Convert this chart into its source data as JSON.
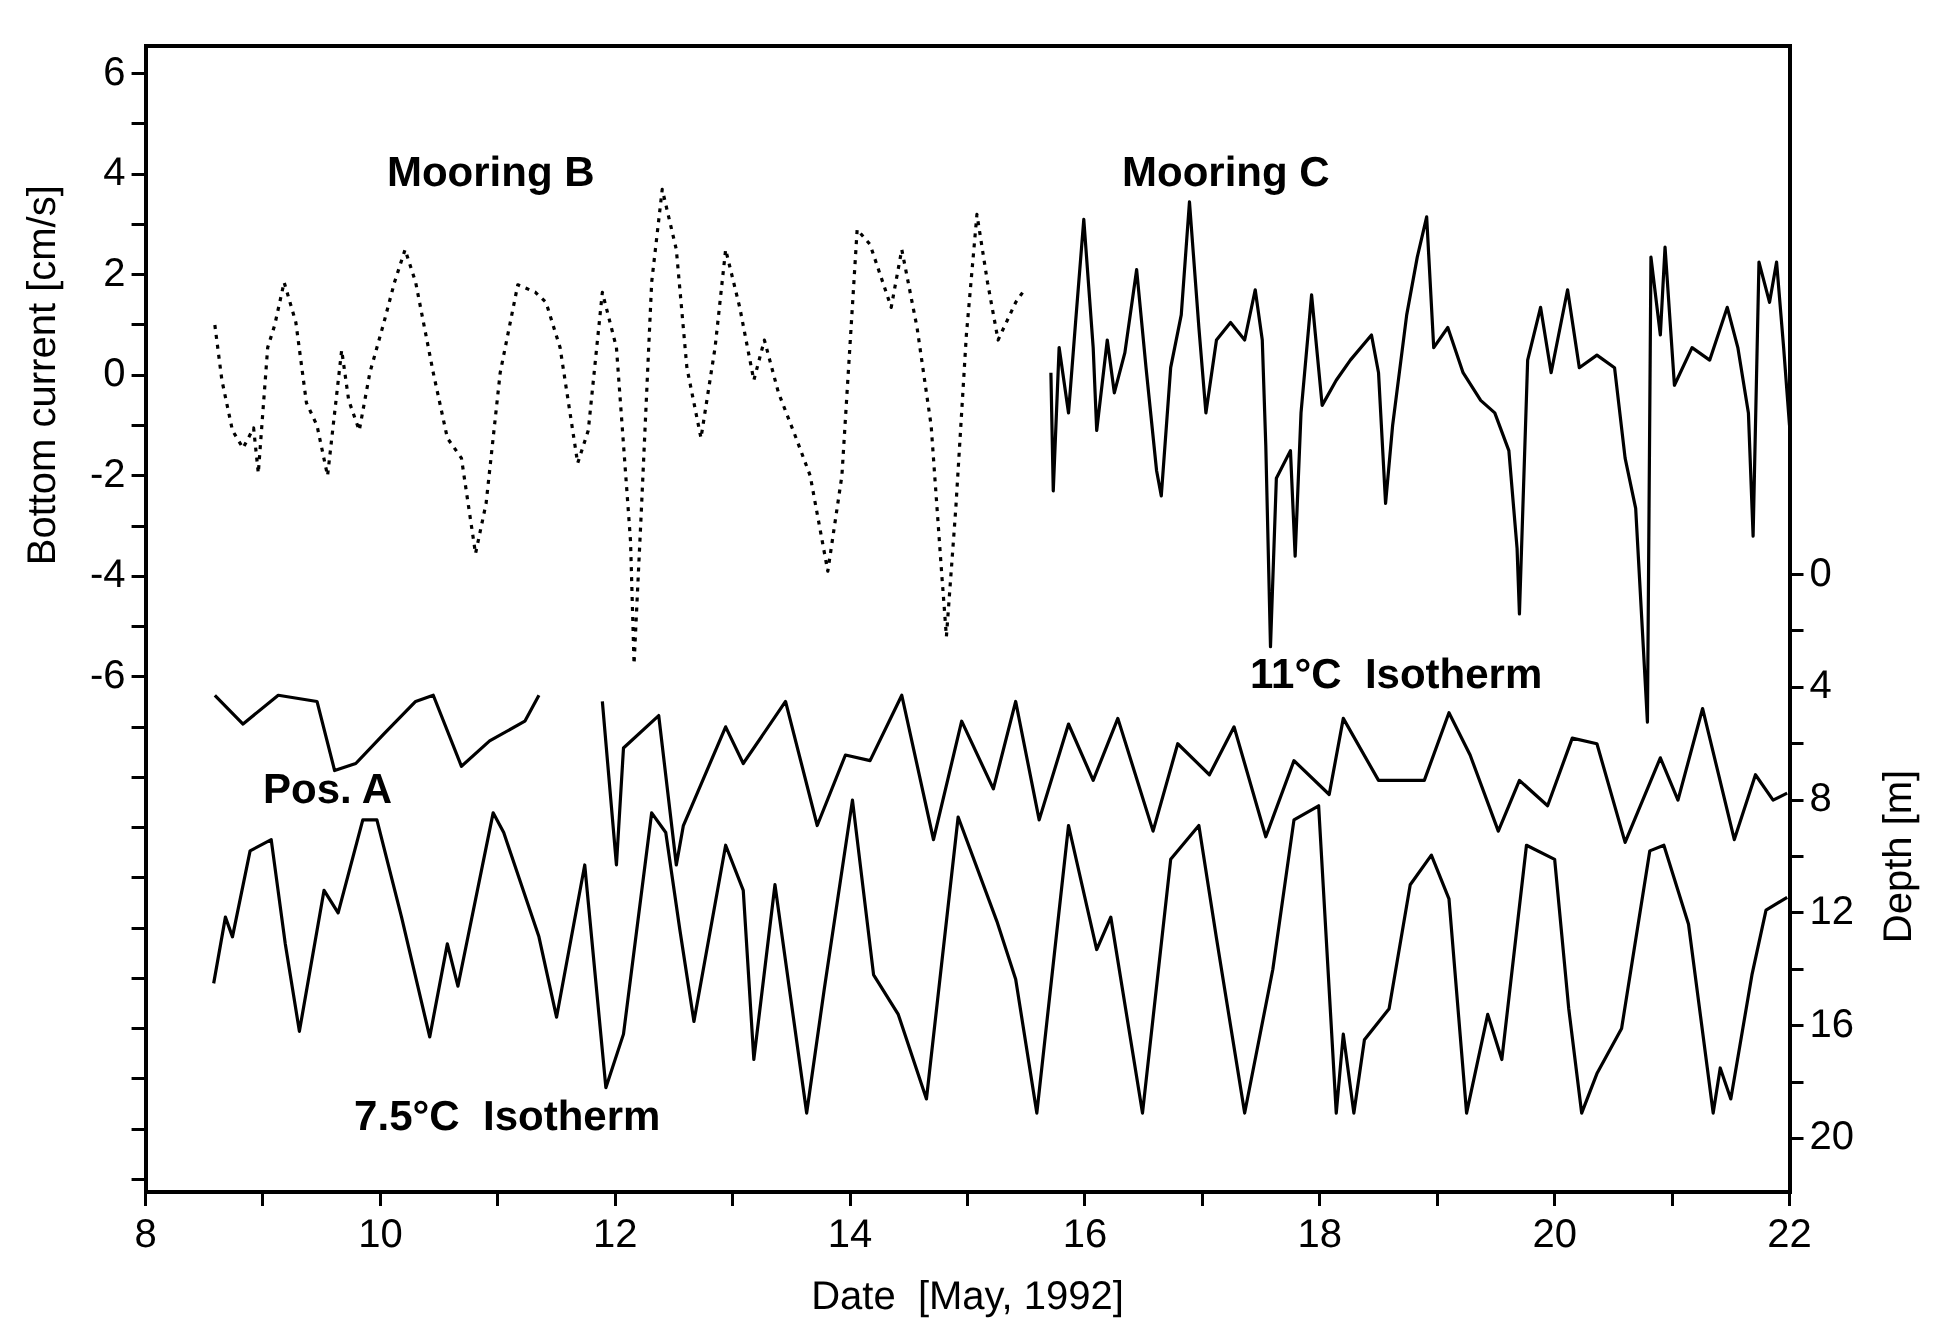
{
  "chart_data": {
    "type": "line",
    "xlabel": "Date  [May, 1992]",
    "ylabel": "Bottom current [cm/s]",
    "y2label": "Depth [m]",
    "annotations": [
      "Pos. A"
    ],
    "xlim": [
      8,
      22
    ],
    "xticks": [
      8,
      {
        "value": 9,
        "label": null
      },
      10,
      {
        "value": 11,
        "label": null
      },
      12,
      {
        "value": 13,
        "label": null
      },
      14,
      {
        "value": 15,
        "label": null
      },
      16,
      {
        "value": 17,
        "label": null
      },
      18,
      {
        "value": 19,
        "label": null
      },
      20,
      {
        "value": 21,
        "label": null
      },
      22
    ],
    "ylim": [
      -16.25,
      6.55
    ],
    "yticks": [
      {
        "value": -16,
        "label": null
      },
      {
        "value": -15,
        "label": null
      },
      {
        "value": -14,
        "label": null
      },
      {
        "value": -13,
        "label": null
      },
      {
        "value": -12,
        "label": null
      },
      {
        "value": -11,
        "label": null
      },
      {
        "value": -10,
        "label": null
      },
      {
        "value": -9,
        "label": null
      },
      {
        "value": -8,
        "label": null
      },
      {
        "value": -7,
        "label": null
      },
      -6,
      {
        "value": -5,
        "label": null
      },
      -4,
      {
        "value": -3,
        "label": null
      },
      -2,
      {
        "value": -1,
        "label": null
      },
      0,
      {
        "value": 1,
        "label": null
      },
      2,
      {
        "value": 3,
        "label": null
      },
      4,
      {
        "value": 5,
        "label": null
      },
      6
    ],
    "y2lim": [
      21.9,
      -18.75
    ],
    "y2ticks": [
      0,
      {
        "value": 2,
        "label": null
      },
      4,
      {
        "value": 6,
        "label": null
      },
      8,
      {
        "value": 10,
        "label": null
      },
      12,
      {
        "value": 14,
        "label": null
      },
      16,
      {
        "value": 18,
        "label": null
      },
      20
    ],
    "series": [
      {
        "name": "Mooring B",
        "color": "#000000",
        "line_style": "dotted",
        "x": [
          8.59,
          8.65,
          8.74,
          8.83,
          8.92,
          8.96,
          9.04,
          9.1,
          9.18,
          9.28,
          9.37,
          9.46,
          9.55,
          9.67,
          9.73,
          9.82,
          9.91,
          10.03,
          10.12,
          10.21,
          10.3,
          10.45,
          10.57,
          10.69,
          10.81,
          10.9,
          11.02,
          11.17,
          11.32,
          11.41,
          11.53,
          11.68,
          11.77,
          11.89,
          12.01,
          12.13,
          12.16,
          12.22,
          12.31,
          12.4,
          12.52,
          12.61,
          12.73,
          12.85,
          12.94,
          13.06,
          13.18,
          13.27,
          13.39,
          13.54,
          13.66,
          13.81,
          13.93,
          14.06,
          14.17,
          14.35,
          14.44,
          14.57,
          14.69,
          14.78,
          14.82,
          14.9,
          14.99,
          15.08,
          15.17,
          15.26,
          15.41,
          15.47
        ],
        "values": [
          1.0,
          -0.1,
          -1.1,
          -1.45,
          -1.05,
          -1.95,
          0.55,
          1.0,
          1.85,
          1.05,
          -0.55,
          -1.0,
          -2.0,
          0.5,
          -0.5,
          -1.1,
          0.05,
          1.05,
          1.85,
          2.5,
          1.85,
          0.05,
          -1.25,
          -1.65,
          -3.55,
          -2.55,
          0.05,
          1.8,
          1.65,
          1.45,
          0.55,
          -1.75,
          -1.1,
          1.65,
          0.55,
          -3.3,
          -5.75,
          -2.8,
          1.85,
          3.7,
          2.5,
          0.15,
          -1.25,
          0.55,
          2.5,
          1.35,
          -0.1,
          0.7,
          -0.35,
          -1.25,
          -2.0,
          -3.9,
          -2.0,
          2.9,
          2.6,
          1.35,
          2.5,
          0.95,
          -1.0,
          -3.95,
          -5.2,
          -2.65,
          0.8,
          3.2,
          1.85,
          0.7,
          1.45,
          1.65
        ]
      },
      {
        "name": "Mooring C",
        "color": "#000000",
        "line_style": "solid",
        "x": [
          15.71,
          15.73,
          15.78,
          15.86,
          15.92,
          15.99,
          16.07,
          16.1,
          16.19,
          16.25,
          16.34,
          16.44,
          16.52,
          16.61,
          16.65,
          16.73,
          16.82,
          16.89,
          16.97,
          17.03,
          17.12,
          17.24,
          17.36,
          17.45,
          17.51,
          17.54,
          17.58,
          17.63,
          17.75,
          17.79,
          17.84,
          17.93,
          18.02,
          18.14,
          18.26,
          18.44,
          18.5,
          18.56,
          18.62,
          18.74,
          18.83,
          18.91,
          18.97,
          19.09,
          19.22,
          19.37,
          19.49,
          19.61,
          19.68,
          19.7,
          19.77,
          19.88,
          19.97,
          20.11,
          20.21,
          20.36,
          20.51,
          20.6,
          20.69,
          20.79,
          20.82,
          20.9,
          20.94,
          21.02,
          21.17,
          21.32,
          21.47,
          21.56,
          21.65,
          21.69,
          21.74,
          21.83,
          21.89,
          21.95,
          22.0
        ],
        "values": [
          0.05,
          -2.3,
          0.55,
          -0.75,
          1.05,
          3.1,
          0.55,
          -1.1,
          0.7,
          -0.35,
          0.45,
          2.1,
          0.15,
          -1.9,
          -2.4,
          0.15,
          1.2,
          3.45,
          0.95,
          -0.75,
          0.7,
          1.05,
          0.7,
          1.7,
          0.7,
          -1.4,
          -5.4,
          -2.05,
          -1.5,
          -3.6,
          -0.75,
          1.6,
          -0.6,
          -0.1,
          0.3,
          0.8,
          0.05,
          -2.55,
          -1.0,
          1.2,
          2.35,
          3.15,
          0.55,
          0.95,
          0.05,
          -0.5,
          -0.75,
          -1.5,
          -3.45,
          -4.75,
          0.3,
          1.35,
          0.05,
          1.7,
          0.15,
          0.4,
          0.15,
          -1.65,
          -2.65,
          -6.9,
          2.35,
          0.8,
          2.55,
          -0.2,
          0.55,
          0.3,
          1.35,
          0.55,
          -0.75,
          -3.2,
          2.25,
          1.45,
          2.25,
          0.55,
          -1.0
        ]
      },
      {
        "name": "11°C  Isotherm",
        "color": "#000000",
        "line_style": "solid",
        "axis": "y2",
        "x": [
          8.59,
          8.83,
          9.13,
          9.46,
          9.61,
          9.79,
          10.03,
          10.3,
          10.45,
          10.69,
          10.93,
          11.23,
          11.35,
          11.6,
          11.89,
          12.01,
          12.07,
          12.37,
          12.52,
          12.58,
          12.94,
          13.09,
          13.45,
          13.72,
          13.96,
          14.17,
          14.44,
          14.71,
          14.95,
          15.22,
          15.41,
          15.61,
          15.86,
          16.07,
          16.28,
          16.58,
          16.79,
          17.06,
          17.27,
          17.54,
          17.78,
          18.08,
          18.2,
          18.5,
          18.89,
          19.1,
          19.28,
          19.52,
          19.7,
          19.94,
          20.15,
          20.36,
          20.6,
          20.9,
          21.05,
          21.26,
          21.53,
          21.71,
          21.86,
          21.98
        ],
        "values": [
          4.28,
          5.3,
          4.28,
          4.5,
          6.95,
          6.7,
          5.65,
          4.5,
          4.28,
          6.8,
          5.9,
          5.2,
          4.28,
          null,
          4.5,
          10.3,
          6.15,
          5.0,
          10.3,
          8.9,
          5.4,
          6.7,
          4.5,
          8.9,
          6.4,
          6.6,
          4.28,
          9.4,
          5.2,
          7.6,
          4.5,
          8.7,
          5.3,
          7.3,
          5.1,
          9.1,
          6.0,
          7.1,
          5.4,
          9.3,
          6.6,
          7.8,
          5.1,
          7.3,
          7.3,
          4.9,
          6.4,
          9.1,
          7.3,
          8.2,
          5.8,
          6.0,
          9.5,
          6.5,
          8.0,
          4.75,
          9.4,
          7.1,
          8.0,
          7.75
        ]
      },
      {
        "name": "7.5°C  Isotherm",
        "color": "#000000",
        "line_style": "solid",
        "axis": "y2",
        "x": [
          8.58,
          8.68,
          8.74,
          8.89,
          9.07,
          9.19,
          9.31,
          9.52,
          9.64,
          9.85,
          9.97,
          10.18,
          10.42,
          10.57,
          10.66,
          10.96,
          11.05,
          11.35,
          11.5,
          11.74,
          11.92,
          12.07,
          12.31,
          12.43,
          12.55,
          12.67,
          12.94,
          13.09,
          13.18,
          13.36,
          13.63,
          13.78,
          14.02,
          14.2,
          14.41,
          14.65,
          14.92,
          15.25,
          15.41,
          15.59,
          15.86,
          16.1,
          16.22,
          16.49,
          16.73,
          16.97,
          17.12,
          17.36,
          17.6,
          17.78,
          17.99,
          18.14,
          18.2,
          18.29,
          18.38,
          18.59,
          18.77,
          18.95,
          19.1,
          19.25,
          19.43,
          19.55,
          19.76,
          20.0,
          20.12,
          20.23,
          20.36,
          20.57,
          20.81,
          20.93,
          21.14,
          21.35,
          21.41,
          21.5,
          21.68,
          21.8,
          21.98
        ],
        "values": [
          14.5,
          12.15,
          12.85,
          9.8,
          9.4,
          13.1,
          16.2,
          11.2,
          12.0,
          8.7,
          8.7,
          12.15,
          16.4,
          13.1,
          14.6,
          8.45,
          9.15,
          12.85,
          15.7,
          10.3,
          18.2,
          16.3,
          8.45,
          9.15,
          12.6,
          15.85,
          9.6,
          11.2,
          17.2,
          11.0,
          19.1,
          14.7,
          8.0,
          14.2,
          15.6,
          18.6,
          8.6,
          12.3,
          14.35,
          19.1,
          8.9,
          13.3,
          12.15,
          19.1,
          10.1,
          8.9,
          12.9,
          19.1,
          14.0,
          8.7,
          8.2,
          19.1,
          16.3,
          19.1,
          16.5,
          15.4,
          11.0,
          9.95,
          11.5,
          19.1,
          15.6,
          17.2,
          9.6,
          10.1,
          15.4,
          19.1,
          17.7,
          16.1,
          9.8,
          9.6,
          12.4,
          19.1,
          17.5,
          18.6,
          14.2,
          11.9,
          11.45
        ]
      }
    ]
  }
}
